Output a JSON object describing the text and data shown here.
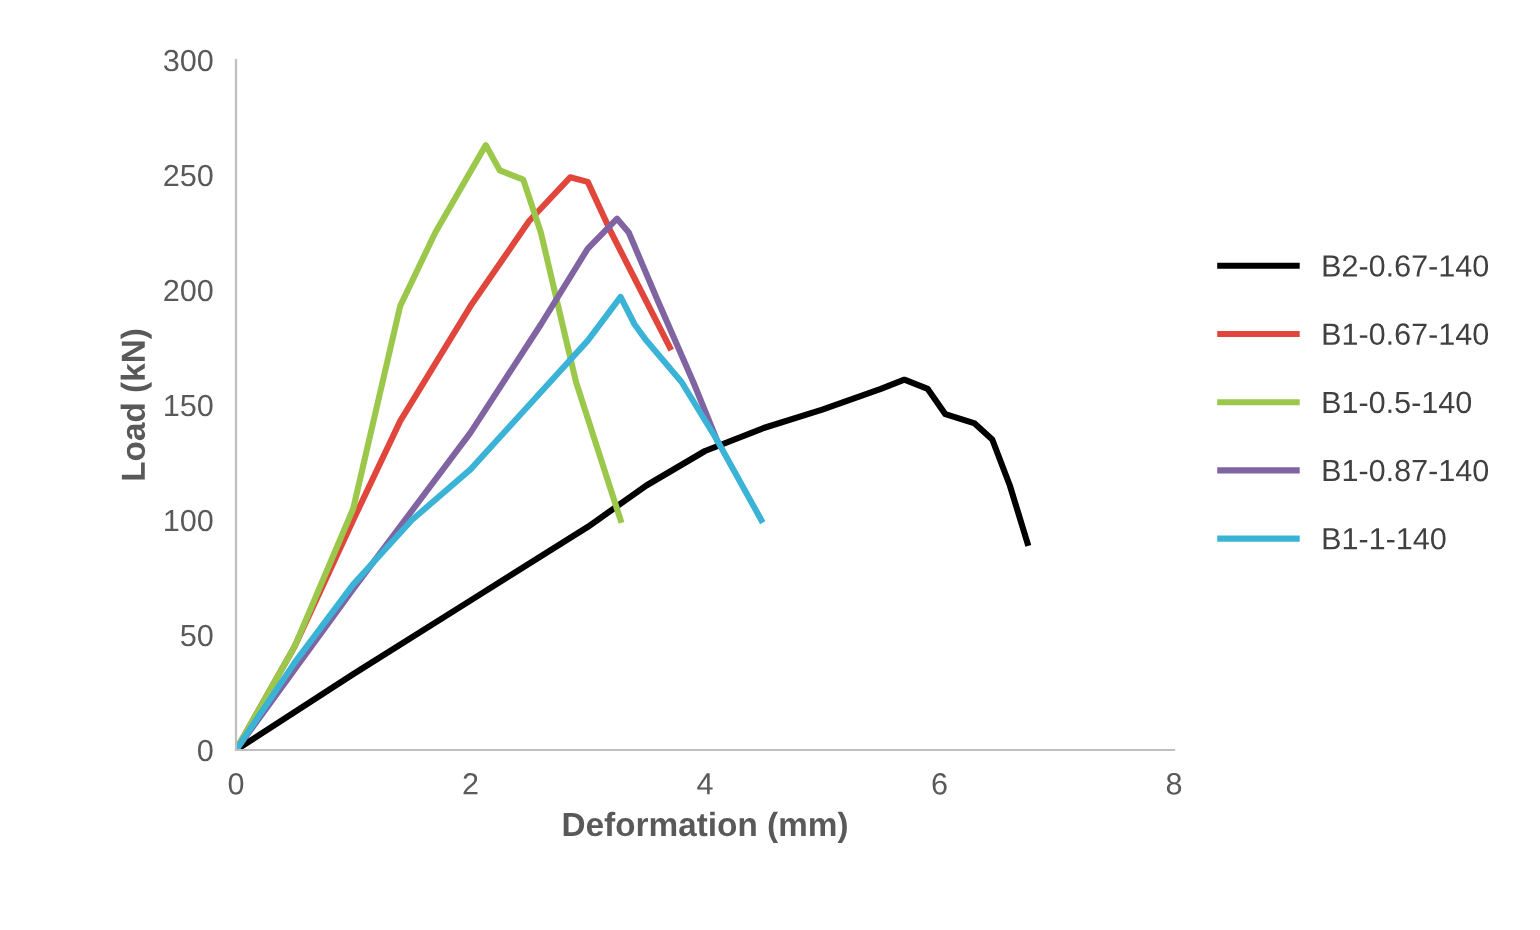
{
  "chart_data": {
    "type": "line",
    "xlabel": "Deformation (mm)",
    "ylabel": "Load (kN)",
    "xlim": [
      0,
      8
    ],
    "xticks": [
      0,
      2,
      4,
      6,
      8
    ],
    "ylim": [
      0,
      300
    ],
    "yticks": [
      0,
      50,
      100,
      150,
      200,
      250,
      300
    ],
    "grid": false,
    "legend": "right",
    "marker": "none",
    "line_style": "solid",
    "series": [
      {
        "name": "B2-0.67-140",
        "color": "#000000",
        "x": [
          0,
          1.0,
          2.0,
          3.0,
          3.5,
          4.0,
          4.5,
          5.0,
          5.5,
          5.7,
          5.9,
          6.05,
          6.3,
          6.45,
          6.6,
          6.75
        ],
        "values": [
          0,
          33,
          65,
          97,
          115,
          130,
          140,
          148,
          157,
          161,
          157,
          146,
          142,
          135,
          115,
          90
        ]
      },
      {
        "name": "B1-0.67-140",
        "color": "#e0463c",
        "x": [
          0,
          0.5,
          1.0,
          1.4,
          2.0,
          2.5,
          2.85,
          3.0,
          3.2,
          3.4,
          3.7
        ],
        "values": [
          0,
          45,
          100,
          143,
          193,
          230,
          249,
          247,
          225,
          205,
          175
        ]
      },
      {
        "name": "B1-0.5-140",
        "color": "#9bc74a",
        "x": [
          0,
          0.5,
          1.0,
          1.4,
          1.7,
          2.13,
          2.25,
          2.45,
          2.6,
          2.9,
          3.28
        ],
        "values": [
          0,
          45,
          105,
          193,
          225,
          263,
          252,
          248,
          225,
          160,
          100
        ]
      },
      {
        "name": "B1-0.87-140",
        "color": "#8064a2",
        "x": [
          0,
          0.5,
          1.0,
          2.0,
          2.6,
          3.0,
          3.25,
          3.35,
          3.6,
          3.9,
          4.1
        ],
        "values": [
          0,
          35,
          70,
          138,
          185,
          218,
          231,
          225,
          195,
          160,
          135
        ]
      },
      {
        "name": "B1-1-140",
        "color": "#3bb3d6",
        "x": [
          0,
          0.5,
          1.0,
          1.5,
          2.0,
          2.5,
          3.0,
          3.28,
          3.4,
          3.5,
          3.8,
          4.1,
          4.48
        ],
        "values": [
          0,
          38,
          72,
          100,
          122,
          150,
          178,
          197,
          185,
          178,
          160,
          135,
          100
        ]
      }
    ]
  }
}
